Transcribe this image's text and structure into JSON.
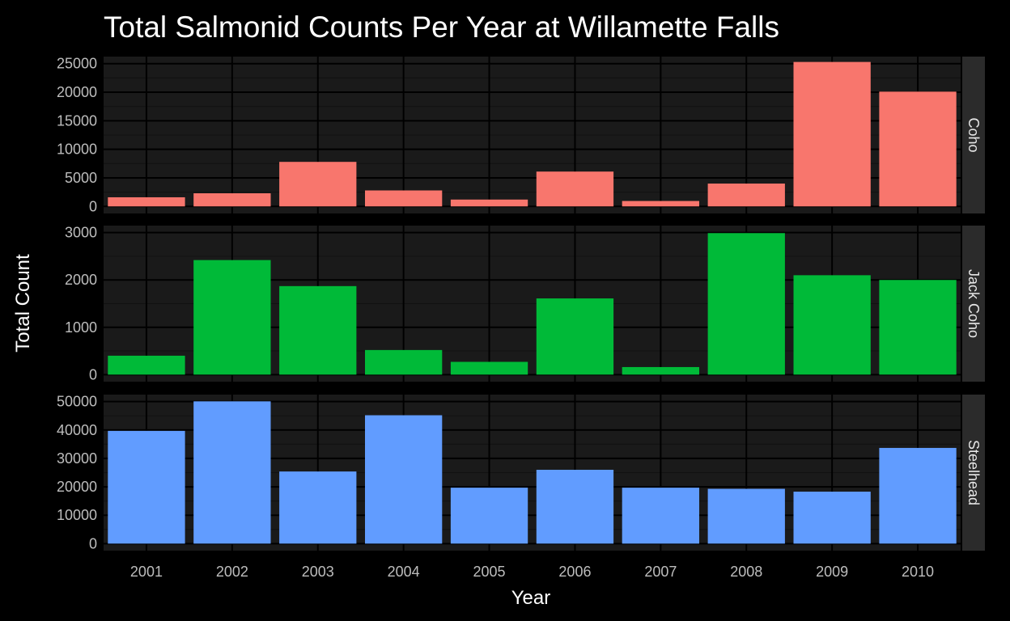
{
  "chart_data": {
    "type": "bar",
    "title": "Total Salmonid Counts Per Year at Willamette Falls",
    "xlabel": "Year",
    "ylabel": "Total Count",
    "categories": [
      "2001",
      "2002",
      "2003",
      "2004",
      "2005",
      "2006",
      "2007",
      "2008",
      "2009",
      "2010"
    ],
    "facets": [
      {
        "name": "Coho",
        "color": "#F8766D",
        "ylim": [
          0,
          25000
        ],
        "yticks": [
          0,
          5000,
          10000,
          15000,
          20000,
          25000
        ],
        "values": [
          1600,
          2300,
          7800,
          2800,
          1200,
          6100,
          950,
          4000,
          25300,
          20100
        ]
      },
      {
        "name": "Jack Coho",
        "color": "#00BA38",
        "ylim": [
          0,
          3000
        ],
        "yticks": [
          0,
          1000,
          2000,
          3000
        ],
        "values": [
          400,
          2420,
          1870,
          520,
          270,
          1610,
          160,
          2990,
          2100,
          2000
        ]
      },
      {
        "name": "Steelhead",
        "color": "#619CFF",
        "ylim": [
          0,
          50000
        ],
        "yticks": [
          0,
          10000,
          20000,
          30000,
          40000,
          50000
        ],
        "values": [
          39700,
          50100,
          25400,
          45200,
          19700,
          26000,
          19700,
          19300,
          18300,
          33700
        ]
      }
    ],
    "legend": "none",
    "grid": true,
    "theme": {
      "background": "#000000",
      "panel_background": "#1a1a1a",
      "strip_background": "#2b2b2b",
      "grid_major": "#000000",
      "grid_minor": "#111111"
    }
  }
}
